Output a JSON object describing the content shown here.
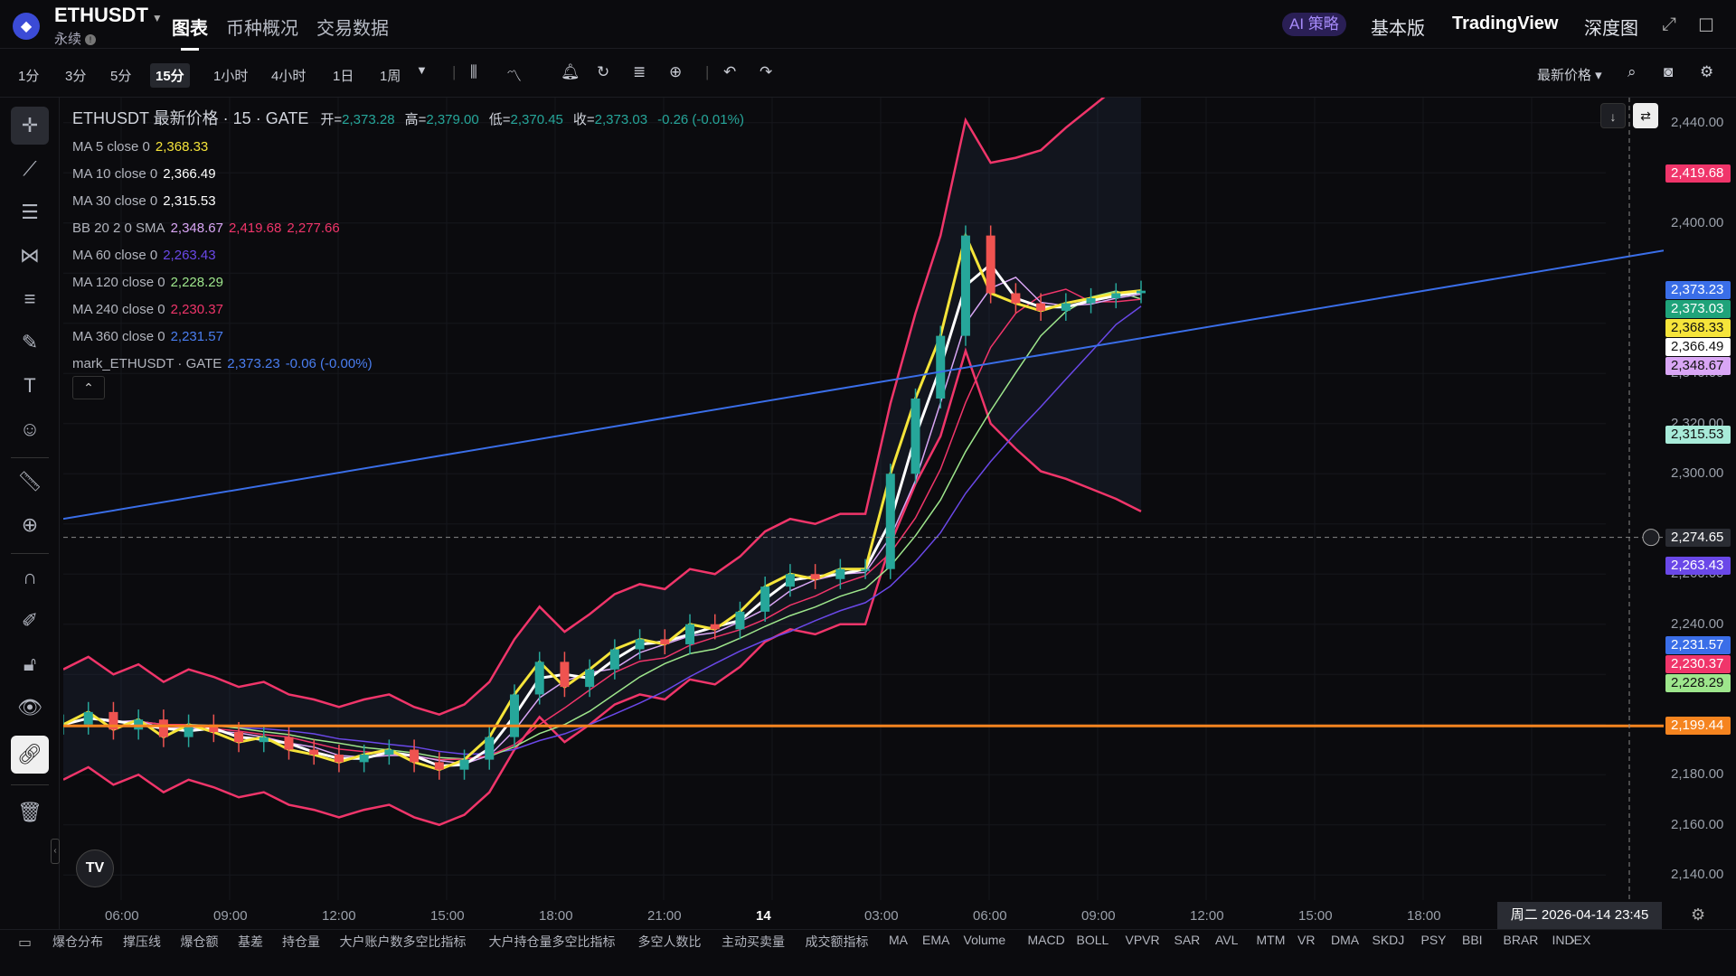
{
  "header": {
    "symbol": "ETHUSDT",
    "contract_type": "永续",
    "tabs": [
      "图表",
      "币种概况",
      "交易数据"
    ],
    "ai_label": "AI 策略",
    "right_tabs": [
      "基本版",
      "TradingView",
      "深度图"
    ]
  },
  "toolbar": {
    "timeframes": [
      "1分",
      "3分",
      "5分",
      "15分",
      "1小时",
      "4小时",
      "1日",
      "1周"
    ],
    "active_timeframe": "15分",
    "price_type": "最新价格"
  },
  "legend": {
    "title": "ETHUSDT 最新价格 · 15 · GATE",
    "open_label": "开=",
    "open": "2,373.28",
    "high_label": "高=",
    "high": "2,379.00",
    "low_label": "低=",
    "low": "2,370.45",
    "close_label": "收=",
    "close": "2,373.03",
    "change": "-0.26 (-0.01%)",
    "indicators": [
      {
        "label": "MA 5 close 0",
        "values": [
          "2,368.33"
        ],
        "colors": [
          "#f5e43a"
        ]
      },
      {
        "label": "MA 10 close 0",
        "values": [
          "2,366.49"
        ],
        "colors": [
          "#ffffff"
        ]
      },
      {
        "label": "MA 30 close 0",
        "values": [
          "2,315.53"
        ],
        "colors": [
          "#ffffff"
        ]
      },
      {
        "label": "BB 20 2 0 SMA",
        "values": [
          "2,348.67",
          "2,419.68",
          "2,277.66"
        ],
        "colors": [
          "#d9a6f5",
          "#f0356a",
          "#f0356a"
        ]
      },
      {
        "label": "MA 60 close 0",
        "values": [
          "2,263.43"
        ],
        "colors": [
          "#6a48e8"
        ]
      },
      {
        "label": "MA 120 close 0",
        "values": [
          "2,228.29"
        ],
        "colors": [
          "#9ee68c"
        ]
      },
      {
        "label": "MA 240 close 0",
        "values": [
          "2,230.37"
        ],
        "colors": [
          "#f0356a"
        ]
      },
      {
        "label": "MA 360 close 0",
        "values": [
          "2,231.57"
        ],
        "colors": [
          "#4a7ef0"
        ]
      },
      {
        "label": "mark_ETHUSDT · GATE",
        "values": [
          "2,373.23",
          "-0.06 (-0.00%)"
        ],
        "colors": [
          "#4a7ef0",
          "#4a7ef0"
        ]
      }
    ]
  },
  "price_axis": {
    "ticks": [
      "2,440.00",
      "2,400.00",
      "2,340.00",
      "2,320.00",
      "2,300.00",
      "2,260.00",
      "2,240.00",
      "2,180.00",
      "2,160.00",
      "2,140.00"
    ],
    "tags": [
      {
        "value": "2,419.68",
        "color": "#f0356a"
      },
      {
        "value": "2,373.23",
        "color": "#3a6ee8"
      },
      {
        "value": "2,373.03",
        "color": "#1fa37a"
      },
      {
        "value": "2,368.33",
        "color": "#f5e43a"
      },
      {
        "value": "2,366.49",
        "color": "#ffffff"
      },
      {
        "value": "2,348.67",
        "color": "#d9a6f5"
      },
      {
        "value": "2,315.53",
        "color": "#a8ebd9"
      },
      {
        "value": "2,274.65",
        "color": "#2a2c33"
      },
      {
        "value": "2,263.43",
        "color": "#6a48e8"
      },
      {
        "value": "2,231.57",
        "color": "#3a6ee8"
      },
      {
        "value": "2,230.37",
        "color": "#f0356a"
      },
      {
        "value": "2,228.29",
        "color": "#9ee68c"
      },
      {
        "value": "2,199.44",
        "color": "#f5841f"
      }
    ]
  },
  "time_axis": [
    "06:00",
    "09:00",
    "12:00",
    "15:00",
    "18:00",
    "21:00",
    "14",
    "03:00",
    "06:00",
    "09:00",
    "12:00",
    "15:00",
    "18:00"
  ],
  "cursor_date": "周二 2026-04-14   23:45",
  "bottom_tabs": [
    "爆仓分布",
    "撑压线",
    "爆仓额",
    "基差",
    "持仓量",
    "大户账户数多空比指标",
    "大户持仓量多空比指标",
    "多空人数比",
    "主动买卖量",
    "成交额指标",
    "MA",
    "EMA",
    "Volume",
    "MACD",
    "BOLL",
    "VPVR",
    "SAR",
    "AVL",
    "MTM",
    "VR",
    "DMA",
    "SKDJ",
    "PSY",
    "BBI",
    "BRAR",
    "INDEX"
  ],
  "chart_data": {
    "type": "candlestick",
    "symbol": "ETHUSDT",
    "interval": "15",
    "yaxis_range": [
      2130,
      2450
    ],
    "x_range_labels": [
      "06:00",
      "18:00"
    ],
    "ohlc_last": {
      "open": 2373.28,
      "high": 2379.0,
      "low": 2370.45,
      "close": 2373.03
    },
    "price_path": [
      2200,
      2205,
      2198,
      2202,
      2195,
      2200,
      2197,
      2193,
      2195,
      2190,
      2188,
      2185,
      2188,
      2190,
      2185,
      2182,
      2186,
      2195,
      2212,
      2225,
      2215,
      2222,
      2230,
      2234,
      2232,
      2240,
      2238,
      2245,
      2255,
      2260,
      2258,
      2262,
      2262,
      2300,
      2330,
      2355,
      2395,
      2372,
      2368,
      2365,
      2368,
      2370,
      2372,
      2373
    ],
    "horizontal_levels": [
      {
        "price": 2199.44,
        "color": "#f5841f"
      }
    ],
    "trendline": {
      "from": 2282,
      "to": 2389,
      "color": "#3a6ee8"
    },
    "crosshair_price": 2274.65
  }
}
